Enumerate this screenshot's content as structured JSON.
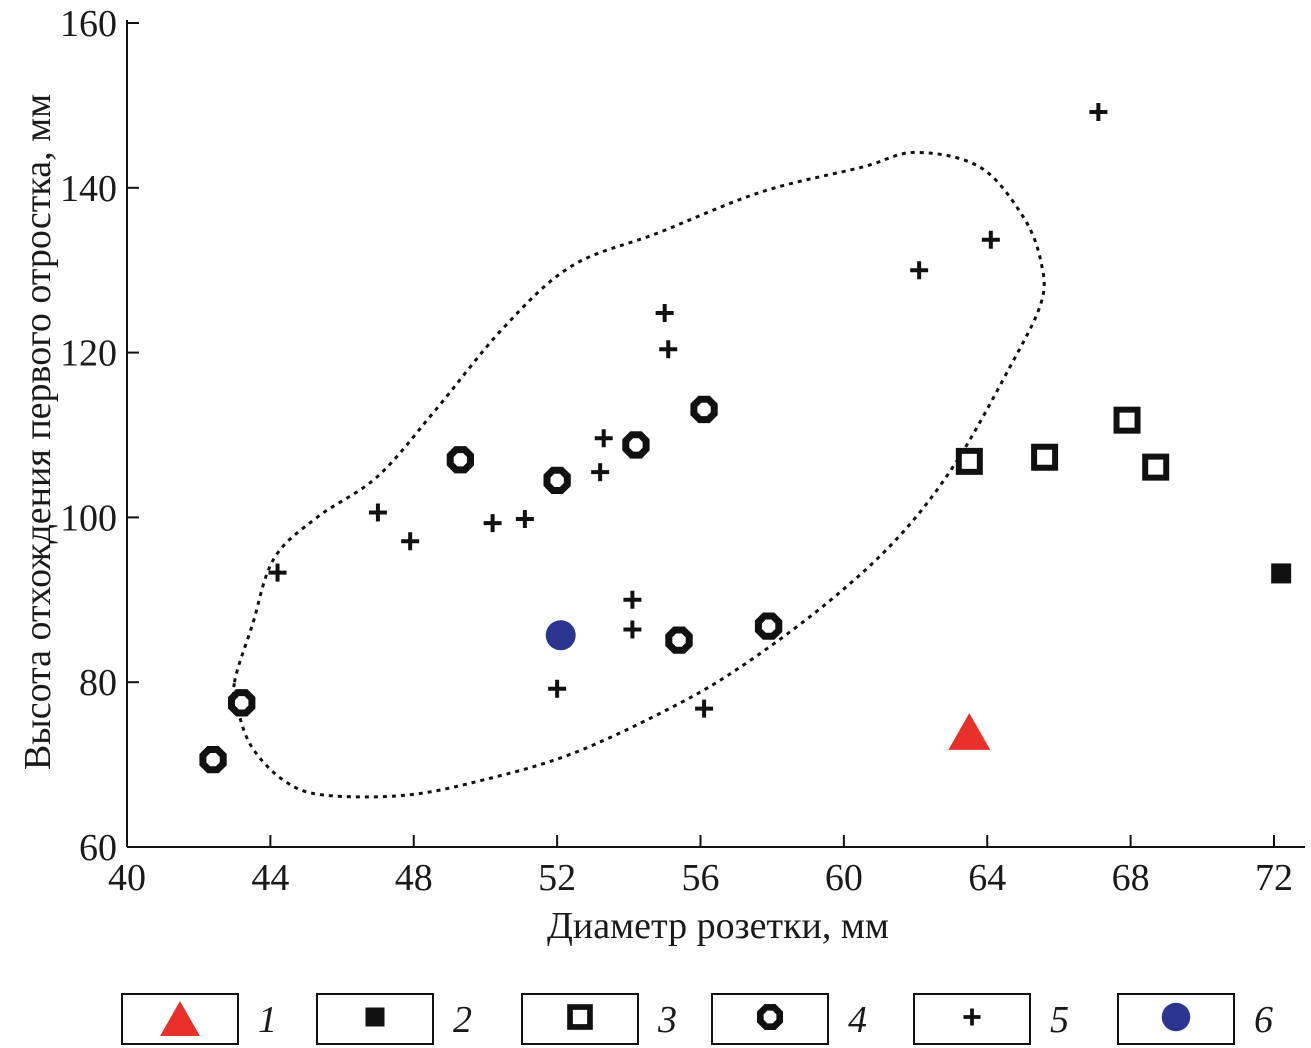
{
  "chart_data": {
    "type": "scatter",
    "xlabel": "Диаметр розетки, мм",
    "ylabel": "Высота отхождения первого отростка, мм",
    "xlim": [
      40,
      73
    ],
    "ylim": [
      60,
      160
    ],
    "xticks": [
      40,
      44,
      48,
      52,
      56,
      60,
      64,
      68,
      72
    ],
    "yticks": [
      60,
      80,
      100,
      120,
      140,
      160
    ],
    "grid": false,
    "legend_position": "bottom",
    "series": [
      {
        "name": "1",
        "marker": "triangle",
        "color": "#e8302a",
        "points": [
          [
            63.5,
            73.7
          ]
        ]
      },
      {
        "name": "2",
        "marker": "filled-square",
        "color": "#111111",
        "points": [
          [
            72.2,
            93.2
          ]
        ]
      },
      {
        "name": "3",
        "marker": "open-square",
        "color": "#111111",
        "points": [
          [
            63.5,
            106.8
          ],
          [
            65.6,
            107.3
          ],
          [
            67.9,
            111.8
          ],
          [
            68.7,
            106.1
          ]
        ]
      },
      {
        "name": "4",
        "marker": "octagon",
        "color": "#111111",
        "points": [
          [
            42.4,
            70.6
          ],
          [
            43.2,
            77.5
          ],
          [
            49.3,
            107.0
          ],
          [
            52.0,
            104.5
          ],
          [
            54.2,
            108.8
          ],
          [
            56.1,
            113.1
          ],
          [
            55.4,
            85.1
          ],
          [
            57.9,
            86.8
          ]
        ]
      },
      {
        "name": "5",
        "marker": "plus",
        "color": "#111111",
        "points": [
          [
            44.2,
            93.3
          ],
          [
            47.0,
            100.6
          ],
          [
            47.9,
            97.1
          ],
          [
            50.2,
            99.3
          ],
          [
            51.1,
            99.8
          ],
          [
            52.0,
            79.2
          ],
          [
            53.2,
            105.5
          ],
          [
            53.3,
            109.6
          ],
          [
            54.1,
            90.0
          ],
          [
            54.1,
            86.4
          ],
          [
            55.0,
            124.8
          ],
          [
            55.1,
            120.4
          ],
          [
            56.1,
            76.8
          ],
          [
            62.1,
            130.0
          ],
          [
            64.1,
            133.7
          ],
          [
            67.1,
            149.2
          ]
        ]
      },
      {
        "name": "6",
        "marker": "circle",
        "color": "#2a3590",
        "points": [
          [
            52.1,
            85.7
          ]
        ]
      }
    ],
    "ellipse": {
      "style": "dashed",
      "path": [
        [
          43.0,
          80.0
        ],
        [
          43.5,
          87.0
        ],
        [
          44.1,
          95.0
        ],
        [
          45.3,
          100.0
        ],
        [
          47.0,
          105.0
        ],
        [
          48.6,
          113.0
        ],
        [
          50.5,
          123.0
        ],
        [
          52.4,
          130.5
        ],
        [
          54.8,
          134.5
        ],
        [
          57.7,
          139.5
        ],
        [
          60.5,
          142.5
        ],
        [
          62.0,
          144.3
        ],
        [
          63.8,
          142.5
        ],
        [
          65.0,
          136.5
        ],
        [
          65.5,
          131.0
        ],
        [
          65.5,
          126.0
        ],
        [
          64.6,
          118.0
        ],
        [
          63.1,
          106.5
        ],
        [
          61.5,
          97.5
        ],
        [
          59.5,
          89.5
        ],
        [
          57.0,
          81.5
        ],
        [
          55.0,
          76.5
        ],
        [
          52.4,
          71.3
        ],
        [
          50.0,
          68.2
        ],
        [
          47.8,
          66.3
        ],
        [
          45.5,
          66.3
        ],
        [
          44.4,
          68.0
        ],
        [
          43.5,
          72.0
        ],
        [
          43.1,
          76.5
        ],
        [
          43.0,
          80.0
        ]
      ]
    }
  }
}
